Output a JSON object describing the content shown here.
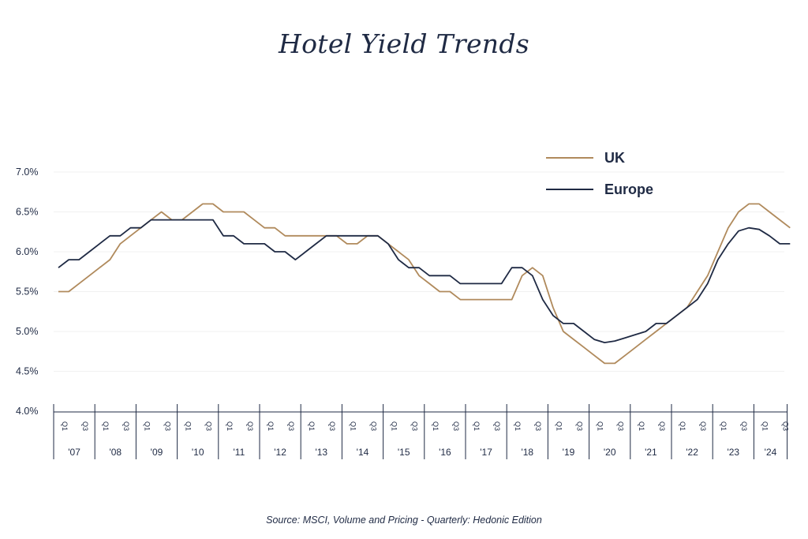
{
  "chart_data": {
    "type": "line",
    "title": "Hotel Yield Trends",
    "source": "Source: MSCI, Volume and Pricing - Quarterly: Hedonic Edition",
    "xlabel": "",
    "ylabel": "",
    "ylim": [
      4.0,
      7.0
    ],
    "yticks": [
      "4.0%",
      "4.5%",
      "5.0%",
      "5.5%",
      "6.0%",
      "6.5%",
      "7.0%"
    ],
    "ytick_values": [
      4.0,
      4.5,
      5.0,
      5.5,
      6.0,
      6.5,
      7.0
    ],
    "grid": true,
    "legend_position": "top-right",
    "years": [
      "'07",
      "'08",
      "'09",
      "'10",
      "'11",
      "'12",
      "'13",
      "'14",
      "'15",
      "'16",
      "'17",
      "'18",
      "'19",
      "'20",
      "'21",
      "'22",
      "'23",
      "'24"
    ],
    "quarter_labels": [
      "Q1",
      "Q3"
    ],
    "x_start": "2007 Q1",
    "x_end": "2024 Q3",
    "series": [
      {
        "name": "UK",
        "color": "#b08a5c",
        "values": [
          5.5,
          5.5,
          5.6,
          5.7,
          5.8,
          5.9,
          6.1,
          6.2,
          6.3,
          6.4,
          6.5,
          6.4,
          6.4,
          6.5,
          6.6,
          6.6,
          6.5,
          6.5,
          6.5,
          6.4,
          6.3,
          6.3,
          6.2,
          6.2,
          6.2,
          6.2,
          6.2,
          6.2,
          6.1,
          6.1,
          6.2,
          6.2,
          6.1,
          6.0,
          5.9,
          5.7,
          5.6,
          5.5,
          5.5,
          5.4,
          5.4,
          5.4,
          5.4,
          5.4,
          5.4,
          5.7,
          5.8,
          5.7,
          5.3,
          5.0,
          4.9,
          4.8,
          4.7,
          4.6,
          4.6,
          4.7,
          4.8,
          4.9,
          5.0,
          5.1,
          5.2,
          5.3,
          5.5,
          5.7,
          6.0,
          6.3,
          6.5,
          6.6,
          6.6,
          6.5,
          6.4,
          6.3
        ]
      },
      {
        "name": "Europe",
        "color": "#1f2a44",
        "values": [
          5.8,
          5.9,
          5.9,
          6.0,
          6.1,
          6.2,
          6.2,
          6.3,
          6.3,
          6.4,
          6.4,
          6.4,
          6.4,
          6.4,
          6.4,
          6.4,
          6.2,
          6.2,
          6.1,
          6.1,
          6.1,
          6.0,
          6.0,
          5.9,
          6.0,
          6.1,
          6.2,
          6.2,
          6.2,
          6.2,
          6.2,
          6.2,
          6.1,
          5.9,
          5.8,
          5.8,
          5.7,
          5.7,
          5.7,
          5.6,
          5.6,
          5.6,
          5.6,
          5.6,
          5.8,
          5.8,
          5.7,
          5.4,
          5.2,
          5.1,
          5.1,
          5.0,
          4.9,
          4.86,
          4.88,
          4.92,
          4.96,
          5.0,
          5.1,
          5.1,
          5.2,
          5.3,
          5.4,
          5.6,
          5.9,
          6.1,
          6.26,
          6.3,
          6.28,
          6.2,
          6.1,
          6.1
        ]
      }
    ]
  }
}
